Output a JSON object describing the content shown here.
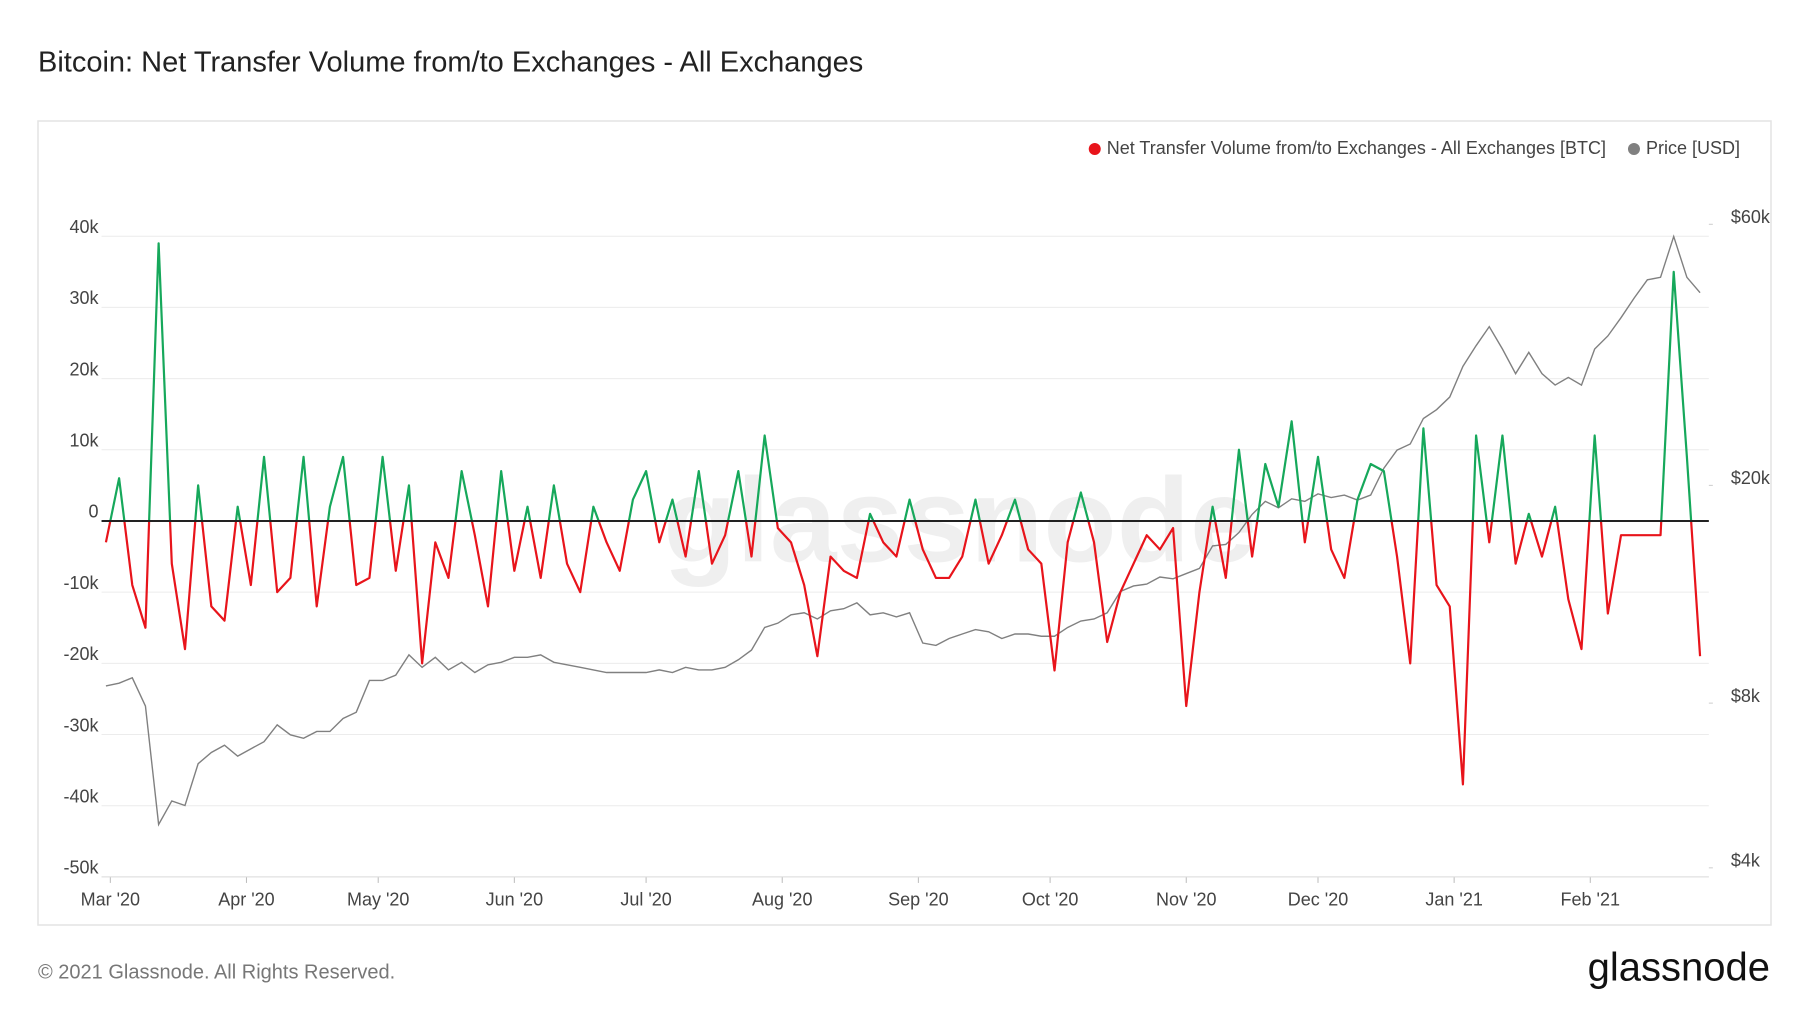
{
  "chart_data": {
    "type": "line",
    "title": "Bitcoin: Net Transfer Volume from/to Exchanges - All Exchanges",
    "watermark": "glassnode",
    "legend": "top-right",
    "grid": true,
    "x": [
      -1,
      2,
      5,
      8,
      11,
      14,
      17,
      20,
      23,
      26,
      29,
      32,
      35,
      38,
      41,
      44,
      47,
      50,
      53,
      56,
      59,
      62,
      65,
      68,
      71,
      74,
      77,
      80,
      83,
      86,
      89,
      92,
      95,
      98,
      101,
      104,
      107,
      110,
      113,
      116,
      119,
      122,
      125,
      128,
      131,
      134,
      137,
      140,
      143,
      146,
      149,
      152,
      155,
      158,
      161,
      164,
      167,
      170,
      173,
      176,
      179,
      182,
      185,
      188,
      191,
      194,
      197,
      200,
      203,
      206,
      209,
      212,
      215,
      218,
      221,
      224,
      227,
      230,
      233,
      236,
      239,
      242,
      245,
      248,
      251,
      254,
      257,
      260,
      263,
      266,
      269,
      272,
      275,
      278,
      281,
      284,
      287,
      290,
      293,
      296,
      299,
      302,
      305,
      308,
      311,
      314,
      317,
      320,
      323,
      326,
      329,
      332,
      335,
      338,
      341,
      344,
      347,
      350,
      353,
      356,
      359,
      362
    ],
    "xlim": [
      -2,
      364
    ],
    "xticks": [
      {
        "value": 0,
        "label": "Mar '20"
      },
      {
        "value": 31,
        "label": "Apr '20"
      },
      {
        "value": 61,
        "label": "May '20"
      },
      {
        "value": 92,
        "label": "Jun '20"
      },
      {
        "value": 122,
        "label": "Jul '20"
      },
      {
        "value": 153,
        "label": "Aug '20"
      },
      {
        "value": 184,
        "label": "Sep '20"
      },
      {
        "value": 214,
        "label": "Oct '20"
      },
      {
        "value": 245,
        "label": "Nov '20"
      },
      {
        "value": 275,
        "label": "Dec '20"
      },
      {
        "value": 306,
        "label": "Jan '21"
      },
      {
        "value": 337,
        "label": "Feb '21"
      }
    ],
    "ylim": [
      -50000,
      50000
    ],
    "yticks": [
      {
        "value": 40000,
        "label": "40k"
      },
      {
        "value": 30000,
        "label": "30k"
      },
      {
        "value": 20000,
        "label": "20k"
      },
      {
        "value": 10000,
        "label": "10k"
      },
      0,
      {
        "value": -10000,
        "label": "-10k"
      },
      {
        "value": -20000,
        "label": "-20k"
      },
      {
        "value": -30000,
        "label": "-30k"
      },
      {
        "value": -40000,
        "label": "-40k"
      },
      {
        "value": -50000,
        "label": "-50k"
      }
    ],
    "y2scale": "log",
    "y2lim": [
      3850,
      77000
    ],
    "y2ticks": [
      {
        "value": 60000,
        "label": "$60k"
      },
      {
        "value": 20000,
        "label": "$20k"
      },
      {
        "value": 8000,
        "label": "$8k"
      },
      {
        "value": 4000,
        "label": "$4k"
      }
    ],
    "series": [
      {
        "name": "Net Transfer Volume from/to Exchanges - All Exchanges [BTC]",
        "color": "#e8141b",
        "positive_color": "#16a85b",
        "values": [
          -3000,
          6000,
          -9000,
          -15000,
          39000,
          -6000,
          -18000,
          5000,
          -12000,
          -14000,
          2000,
          -9000,
          9000,
          -10000,
          -8000,
          9000,
          -12000,
          2000,
          9000,
          -9000,
          -8000,
          9000,
          -7000,
          5000,
          -20000,
          -3000,
          -8000,
          7000,
          -2000,
          -12000,
          7000,
          -7000,
          2000,
          -8000,
          5000,
          -6000,
          -10000,
          2000,
          -3000,
          -7000,
          3000,
          7000,
          -3000,
          3000,
          -5000,
          7000,
          -6000,
          -2000,
          7000,
          -5000,
          12000,
          -1000,
          -3000,
          -9000,
          -19000,
          -5000,
          -7000,
          -8000,
          1000,
          -3000,
          -5000,
          3000,
          -4000,
          -8000,
          -8000,
          -5000,
          3000,
          -6000,
          -2000,
          3000,
          -4000,
          -6000,
          -21000,
          -3000,
          4000,
          -3000,
          -17000,
          -10000,
          -6000,
          -2000,
          -4000,
          -1000,
          -26000,
          -10000,
          2000,
          -8000,
          10000,
          -5000,
          8000,
          2000,
          14000,
          -3000,
          9000,
          -4000,
          -8000,
          3000,
          8000,
          7000,
          -5000,
          -20000,
          13000,
          -9000,
          -12000,
          -37000,
          12000,
          -3000,
          12000,
          -6000,
          1000,
          -5000,
          2000,
          -11000,
          -18000,
          12000,
          -13000,
          -2000,
          -2000,
          -2000,
          -2000,
          35000,
          9000,
          -19000
        ]
      },
      {
        "name": "Price [USD]",
        "color": "#808080",
        "axis": "y2",
        "values": [
          8600,
          8700,
          8900,
          7900,
          4800,
          5300,
          5200,
          6200,
          6500,
          6700,
          6400,
          6600,
          6800,
          7300,
          7000,
          6900,
          7100,
          7100,
          7500,
          7700,
          8800,
          8800,
          9000,
          9800,
          9300,
          9700,
          9200,
          9500,
          9100,
          9400,
          9500,
          9700,
          9700,
          9800,
          9500,
          9400,
          9300,
          9200,
          9100,
          9100,
          9100,
          9100,
          9200,
          9100,
          9300,
          9200,
          9200,
          9300,
          9600,
          10000,
          11000,
          11200,
          11600,
          11700,
          11400,
          11800,
          11900,
          12200,
          11600,
          11700,
          11500,
          11700,
          10300,
          10200,
          10500,
          10700,
          10900,
          10800,
          10500,
          10700,
          10700,
          10600,
          10600,
          11000,
          11300,
          11400,
          11700,
          12800,
          13100,
          13200,
          13600,
          13500,
          13800,
          14100,
          15500,
          15600,
          16400,
          17700,
          18700,
          18200,
          18900,
          18700,
          19300,
          19000,
          19200,
          18800,
          19200,
          21500,
          23200,
          23800,
          26500,
          27500,
          29000,
          33000,
          36000,
          39000,
          35500,
          32000,
          35000,
          32000,
          30500,
          31500,
          30500,
          35500,
          37500,
          40500,
          44000,
          47500,
          48000,
          57000,
          48000,
          45000
        ]
      }
    ]
  },
  "footer": {
    "copyright": "© 2021 Glassnode. All Rights Reserved.",
    "brand": "glassnode"
  }
}
